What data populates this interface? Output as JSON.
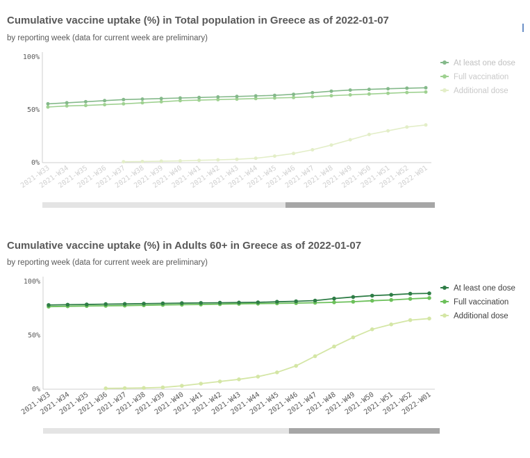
{
  "panels": [
    {
      "title": "Cumulative vaccine uptake (%) in Total population in Greece as of 2022-01-07",
      "subtitle": "by reporting week (data for current week are preliminary)",
      "legend": [
        "At least one dose",
        "Full vaccination",
        "Additional dose"
      ]
    },
    {
      "title": "Cumulative vaccine uptake (%) in Adults 60+ in Greece as of 2022-01-07",
      "subtitle": "by reporting week (data for current week are preliminary)",
      "legend": [
        "At least one dose",
        "Full vaccination",
        "Additional dose"
      ]
    }
  ],
  "colors": {
    "at_least_one_dose": "#2e7d46",
    "full_vaccination": "#6cc05a",
    "additional_dose": "#d4e6a5",
    "panel1_at_least_one_dose": "#84b98a",
    "panel1_full_vaccination": "#9fd191",
    "panel1_additional_dose": "#e3eec8",
    "axis_text": "#595959",
    "tick_label_text": "#c8c8c8"
  },
  "chart_data": [
    {
      "type": "line",
      "title": "Cumulative vaccine uptake (%) in Total population in Greece as of 2022-01-07",
      "subtitle": "by reporting week (data for current week are preliminary)",
      "x": [
        "2021-W33",
        "2021-W34",
        "2021-W35",
        "2021-W36",
        "2021-W37",
        "2021-W38",
        "2021-W39",
        "2021-W40",
        "2021-W41",
        "2021-W42",
        "2021-W43",
        "2021-W44",
        "2021-W45",
        "2021-W46",
        "2021-W47",
        "2021-W48",
        "2021-W49",
        "2021-W50",
        "2021-W51",
        "2021-W52",
        "2022-W01"
      ],
      "yticks": [
        "0%",
        "50%",
        "100%"
      ],
      "ylim": [
        0,
        100
      ],
      "series": [
        {
          "name": "At least one dose",
          "values": [
            55,
            56,
            57,
            58,
            59,
            59.5,
            60,
            60.5,
            61,
            61.5,
            62,
            62.5,
            63,
            64,
            65.5,
            67,
            68,
            68.7,
            69.3,
            69.8,
            70.2
          ]
        },
        {
          "name": "Full vaccination",
          "values": [
            52,
            53,
            53.5,
            54.2,
            55,
            56,
            57,
            58,
            58.5,
            59,
            59.5,
            60,
            60.5,
            61,
            61.8,
            62.7,
            63.5,
            64.3,
            65,
            65.7,
            66.2
          ]
        },
        {
          "name": "Additional dose",
          "values": [
            null,
            null,
            null,
            null,
            0.2,
            0.4,
            0.7,
            1,
            1.5,
            2,
            2.5,
            3.5,
            5.5,
            8,
            11.5,
            16,
            21,
            26,
            29.5,
            33,
            35
          ]
        }
      ],
      "legend": "right",
      "grid": false
    },
    {
      "type": "line",
      "title": "Cumulative vaccine uptake (%) in Adults 60+ in Greece as of 2022-01-07",
      "subtitle": "by reporting week (data for current week are preliminary)",
      "x": [
        "2021-W33",
        "2021-W34",
        "2021-W35",
        "2021-W36",
        "2021-W37",
        "2021-W38",
        "2021-W39",
        "2021-W40",
        "2021-W41",
        "2021-W42",
        "2021-W43",
        "2021-W44",
        "2021-W45",
        "2021-W46",
        "2021-W47",
        "2021-W48",
        "2021-W49",
        "2021-W50",
        "2021-W51",
        "2021-W52",
        "2022-W01"
      ],
      "yticks": [
        "0%",
        "50%",
        "100%"
      ],
      "ylim": [
        0,
        100
      ],
      "series": [
        {
          "name": "At least one dose",
          "values": [
            77.5,
            77.8,
            78,
            78.3,
            78.5,
            78.8,
            79,
            79.2,
            79.4,
            79.6,
            79.8,
            80,
            80.5,
            81,
            81.6,
            83.5,
            85,
            86.2,
            87,
            88,
            88.3
          ]
        },
        {
          "name": "Full vaccination",
          "values": [
            76,
            76.3,
            76.6,
            76.8,
            77,
            77.3,
            77.6,
            77.8,
            78,
            78.3,
            78.6,
            78.8,
            79,
            79.3,
            79.6,
            80,
            80.6,
            81.5,
            82.2,
            83.2,
            84
          ]
        },
        {
          "name": "Additional dose",
          "values": [
            null,
            null,
            null,
            0.1,
            0.3,
            0.5,
            1,
            2.5,
            4.5,
            6.5,
            8.5,
            11,
            15,
            21,
            30,
            39,
            47.5,
            55,
            59.5,
            63.5,
            65
          ]
        }
      ],
      "legend": "right",
      "grid": false
    }
  ]
}
